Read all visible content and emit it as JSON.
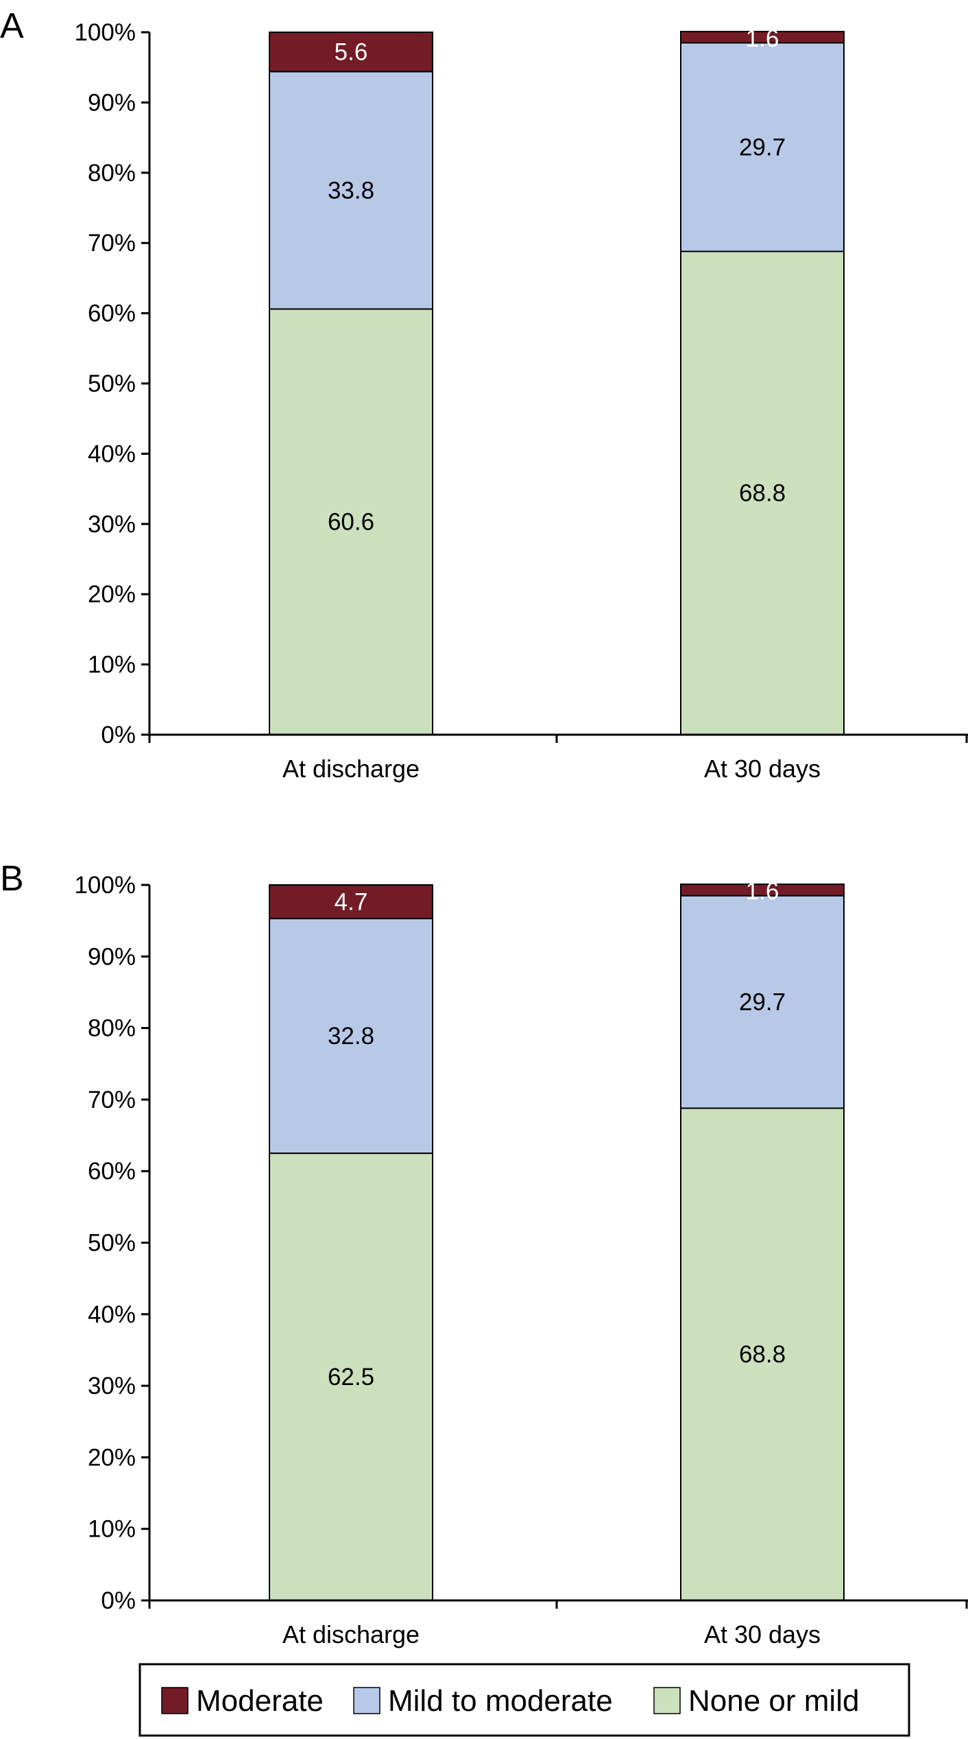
{
  "chart_data": [
    {
      "type": "bar",
      "stacked": true,
      "panel_label": "A",
      "categories": [
        "At discharge",
        "At 30 days"
      ],
      "series": [
        {
          "name": "None or mild",
          "values": [
            60.6,
            68.8
          ],
          "color": "#cce0bd"
        },
        {
          "name": "Mild to moderate",
          "values": [
            33.8,
            29.7
          ],
          "color": "#b8c9e8"
        },
        {
          "name": "Moderate",
          "values": [
            5.6,
            1.6
          ],
          "color": "#731c26"
        }
      ],
      "ylim": [
        0,
        100
      ],
      "yticks": [
        "0%",
        "10%",
        "20%",
        "30%",
        "40%",
        "50%",
        "60%",
        "70%",
        "80%",
        "90%",
        "100%"
      ],
      "grid": false
    },
    {
      "type": "bar",
      "stacked": true,
      "panel_label": "B",
      "categories": [
        "At discharge",
        "At 30 days"
      ],
      "series": [
        {
          "name": "None or mild",
          "values": [
            62.5,
            68.8
          ],
          "color": "#cce0bd"
        },
        {
          "name": "Mild to moderate",
          "values": [
            32.8,
            29.7
          ],
          "color": "#b8c9e8"
        },
        {
          "name": "Moderate",
          "values": [
            4.7,
            1.6
          ],
          "color": "#731c26"
        }
      ],
      "ylim": [
        0,
        100
      ],
      "yticks": [
        "0%",
        "10%",
        "20%",
        "30%",
        "40%",
        "50%",
        "60%",
        "70%",
        "80%",
        "90%",
        "100%"
      ],
      "grid": false
    }
  ],
  "legend": {
    "position": "bottom",
    "items": [
      {
        "label": "Moderate",
        "color": "#731c26"
      },
      {
        "label": "Mild to moderate",
        "color": "#b8c9e8"
      },
      {
        "label": "None or mild",
        "color": "#cce0bd"
      }
    ]
  }
}
